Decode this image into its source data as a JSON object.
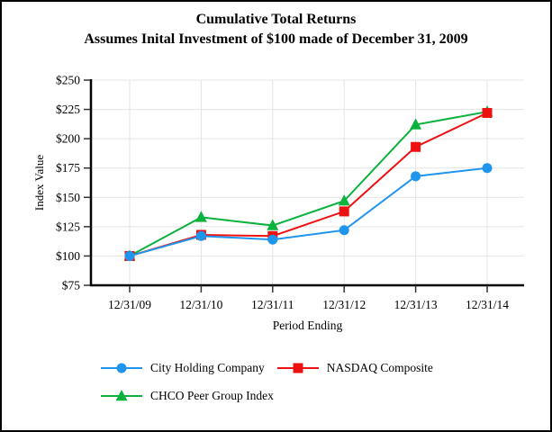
{
  "window": {
    "background": "#ffffff",
    "border_color": "#000000"
  },
  "chart_data": {
    "type": "line",
    "title": "Cumulative Total Returns",
    "subtitle": "Assumes Inital Investment of $100 made of December 31, 2009",
    "xlabel": "Period Ending",
    "ylabel": "Index Value",
    "categories": [
      "12/31/09",
      "12/31/10",
      "12/31/11",
      "12/31/12",
      "12/31/13",
      "12/31/14"
    ],
    "series": [
      {
        "name": "City Holding Company",
        "marker": "circle",
        "color": "#1F95EE",
        "values": [
          100,
          117,
          114,
          122,
          168,
          175
        ]
      },
      {
        "name": "NASDAQ Composite",
        "marker": "square",
        "color": "#EE1111",
        "values": [
          100,
          118,
          117,
          138,
          193,
          222
        ]
      },
      {
        "name": "CHCO Peer Group Index",
        "marker": "triangle",
        "color": "#0CB23E",
        "values": [
          100,
          133,
          126,
          147,
          212,
          223
        ]
      }
    ],
    "ylim": [
      75,
      250
    ],
    "ytick_step": 25,
    "ytick_prefix": "$",
    "grid": true,
    "grid_color": "#E4E4E4",
    "axis_color": "#000000",
    "tick_color": "#333333",
    "legend_position": "bottom"
  }
}
